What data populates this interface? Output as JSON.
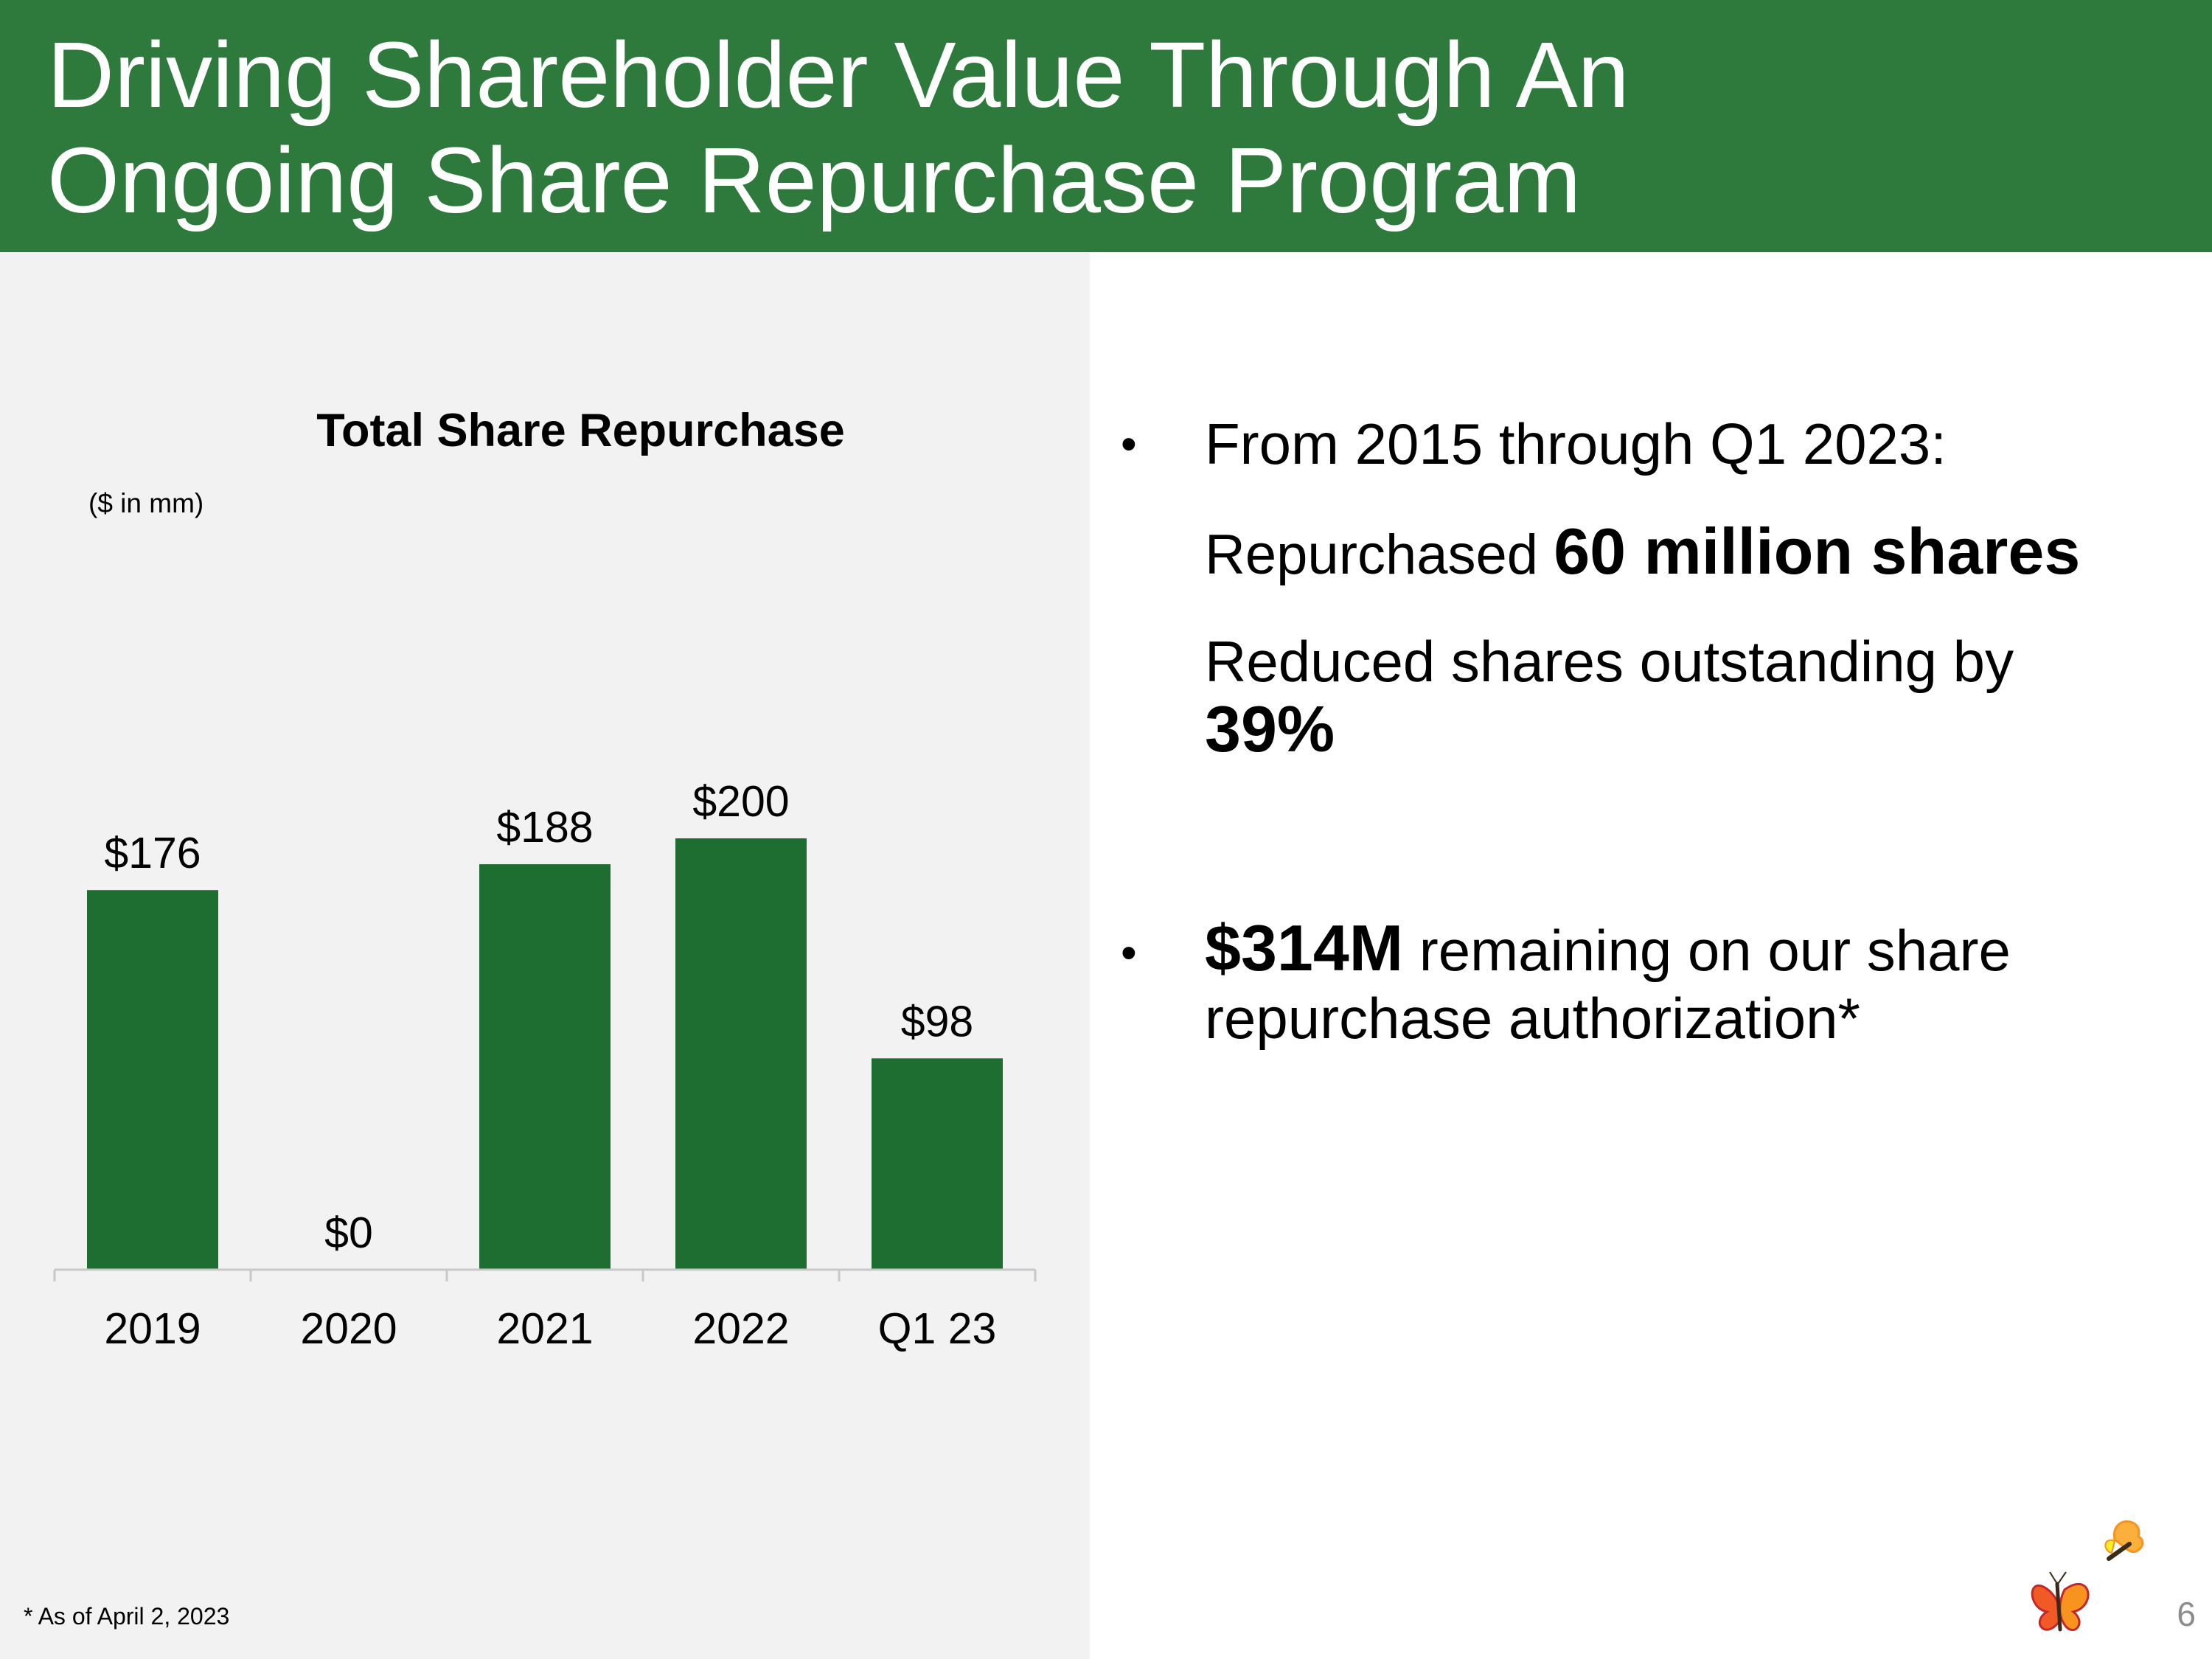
{
  "header": {
    "title_line1": "Driving Shareholder Value Through An",
    "title_line2": "Ongoing Share Repurchase Program"
  },
  "chart_data": {
    "type": "bar",
    "title": "Total Share Repurchase",
    "unit_label": "($ in mm)",
    "categories": [
      "2019",
      "2020",
      "2021",
      "2022",
      "Q1 23"
    ],
    "values": [
      176,
      0,
      188,
      200,
      98
    ],
    "data_labels": [
      "$176",
      "$0",
      "$188",
      "$200",
      "$98"
    ],
    "xlabel": "",
    "ylabel": "",
    "ylim": [
      0,
      200
    ],
    "grid": false,
    "legend": "none",
    "bar_color": "#1d6e30"
  },
  "bullets": {
    "b1_intro": "From 2015 through Q1 2023:",
    "b1_line2_prefix": "Repurchased",
    "b1_line2_bold": "60 million shares",
    "b1_line3_prefix": "Reduced shares outstanding by",
    "b1_line3_bold": "39%",
    "b2_bold": "$314M",
    "b2_text": "remaining on our share repurchase authorization*",
    "bullet_symbol": "•"
  },
  "footnote": "* As of April 2, 2023",
  "page_number": "6",
  "logo_icon": "butterfly-logo-icon",
  "colors": {
    "header_green": "#2e7a3c",
    "bar_green": "#1d6e30",
    "panel_gray": "#f2f2f2",
    "page_number_gray": "#8c8c8c"
  }
}
